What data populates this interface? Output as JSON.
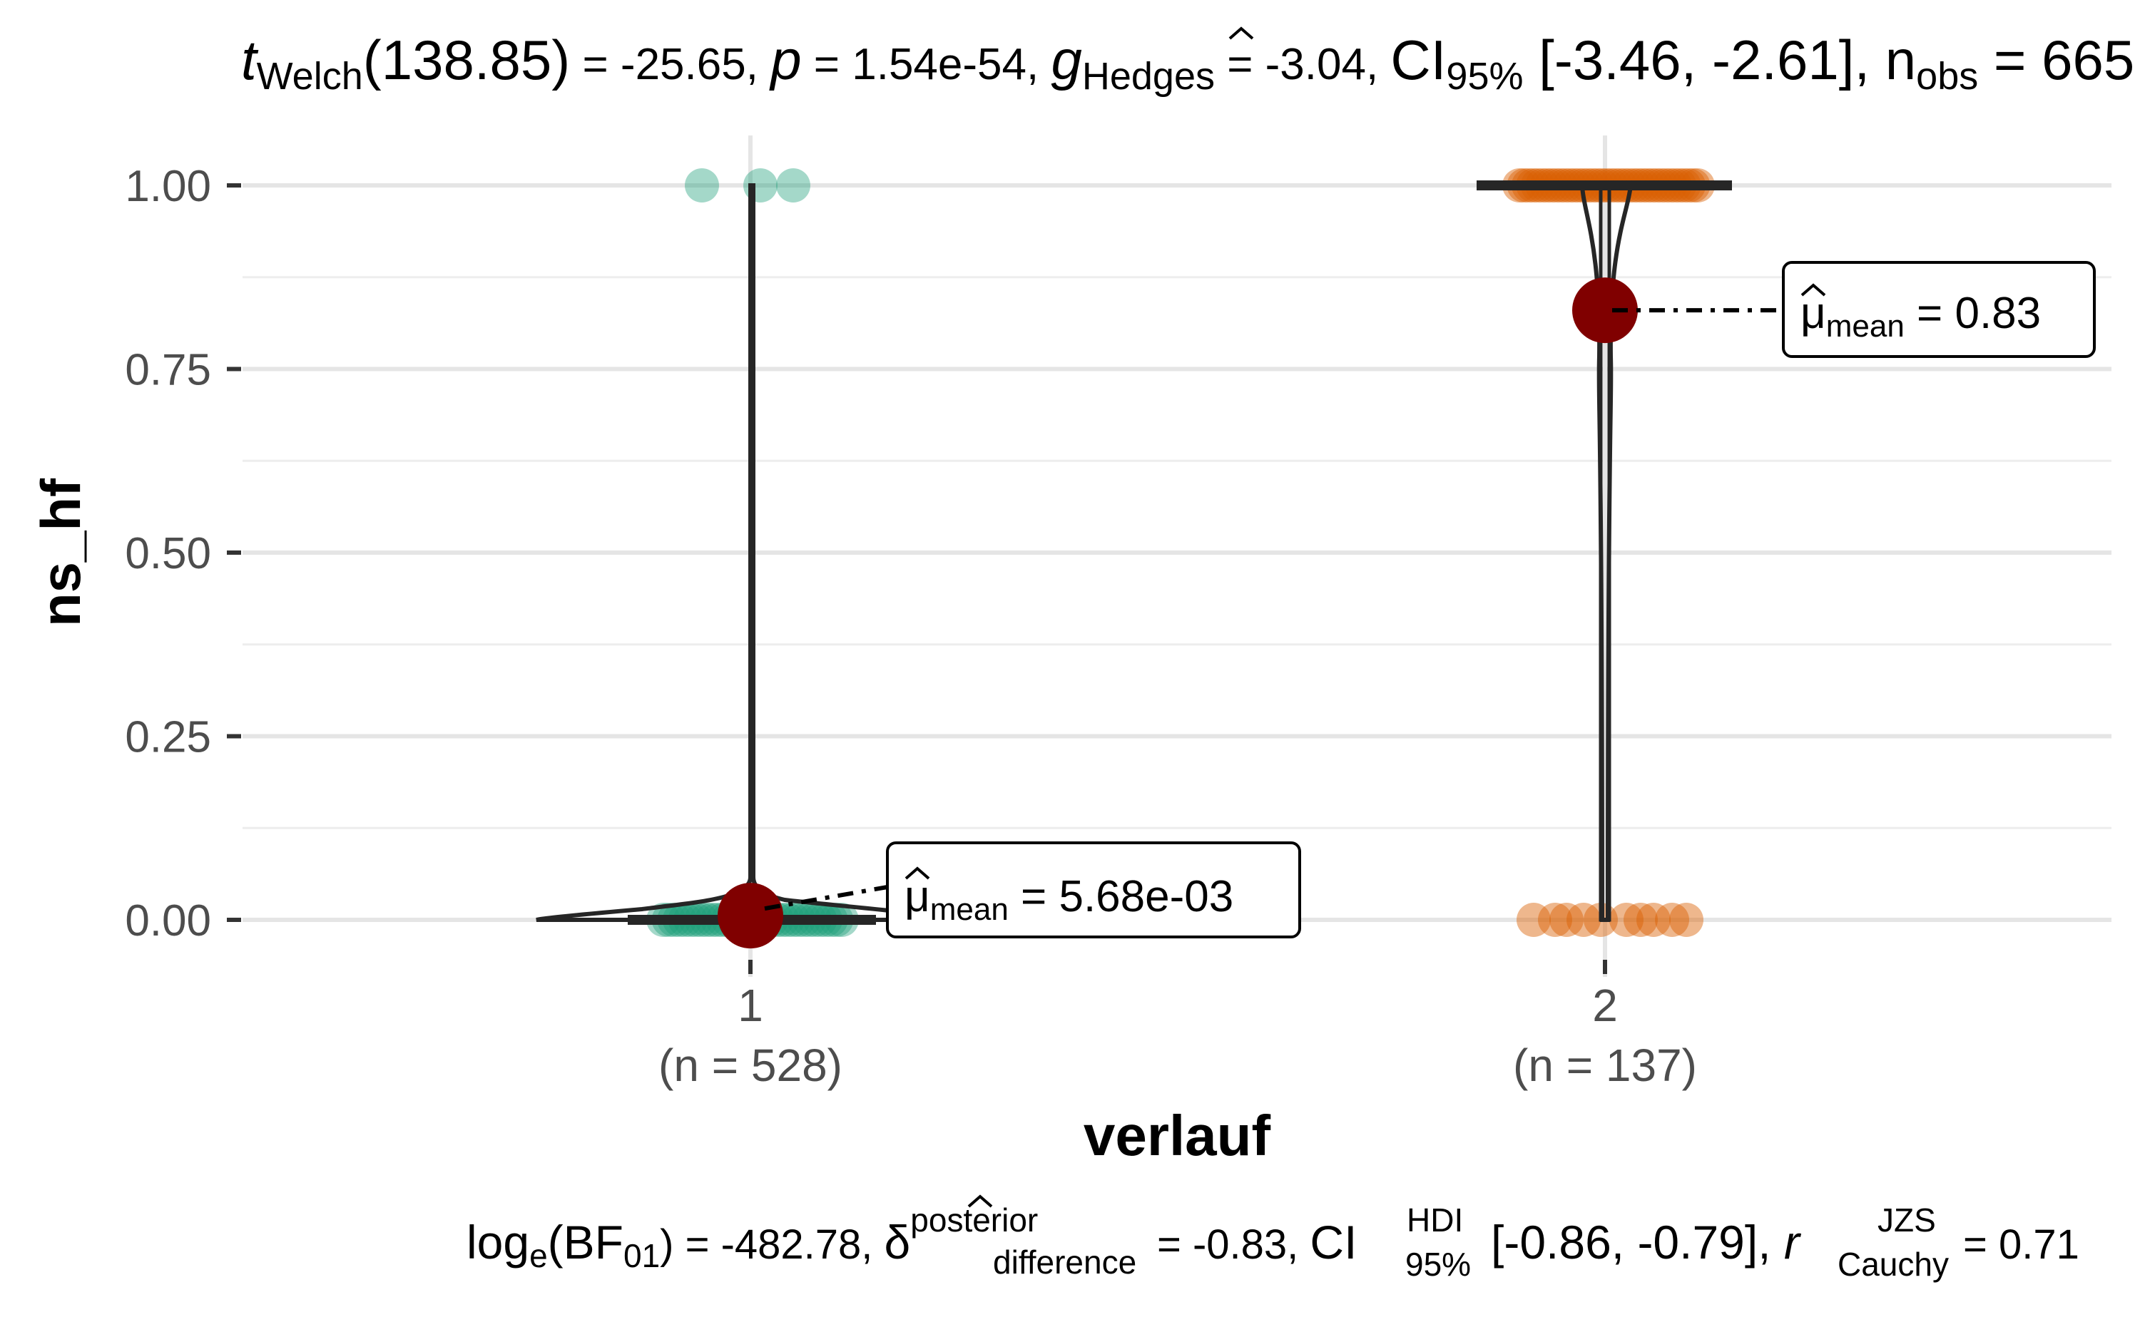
{
  "chart_data": {
    "type": "violin-box-scatter",
    "title_parts": {
      "t": "t",
      "t_sub": "Welch",
      "df": "(138.85)",
      "t_val": " = -25.65, ",
      "p": "p",
      "p_val": " = 1.54e-54, ",
      "g": "g",
      "g_sub": "Hedges",
      "g_val": " = -3.04, ",
      "ci": "CI",
      "ci_sub": "95%",
      "ci_val": " [-3.46, -2.61], n",
      "n_sub": "obs",
      "n_val": " = 665"
    },
    "caption_parts": {
      "log": "log",
      "log_sub": "e",
      "bf_open": "(BF",
      "bf_sub": "01",
      "bf_val": ") = -482.78, ",
      "delta": "δ",
      "delta_sup": "posterior",
      "delta_sub": "difference",
      "delta_val": " = -0.83, ",
      "ci": "CI",
      "ci_sup": "HDI",
      "ci_sub": "95%",
      "ci_val": " [-0.86, -0.79], ",
      "r": "r",
      "r_sup": "JZS",
      "r_sub": "Cauchy",
      "r_val": " = 0.71"
    },
    "xlabel": "verlauf",
    "ylabel": "ns_hf",
    "ylim": [
      -0.12,
      1.08
    ],
    "yticks": [
      {
        "value": 0.0,
        "label": "0.00"
      },
      {
        "value": 0.25,
        "label": "0.25"
      },
      {
        "value": 0.5,
        "label": "0.50"
      },
      {
        "value": 0.75,
        "label": "0.75"
      },
      {
        "value": 1.0,
        "label": "1.00"
      }
    ],
    "grid": true,
    "groups": [
      {
        "category": "1",
        "n_label": "(n = 528)",
        "color": "#1b9e77",
        "mean": 0.00568,
        "mean_label_prefix": "μ",
        "mean_label_sub": "mean",
        "mean_label_val": " = 5.68e-03",
        "points_at_one": 3,
        "points_at_zero": 525
      },
      {
        "category": "2",
        "n_label": "(n = 137)",
        "color": "#d95f02",
        "mean": 0.83,
        "mean_label_prefix": "μ",
        "mean_label_sub": "mean",
        "mean_label_val": " = 0.83",
        "points_at_one": 114,
        "points_at_zero": 23
      }
    ],
    "mean_color": "#800000"
  }
}
